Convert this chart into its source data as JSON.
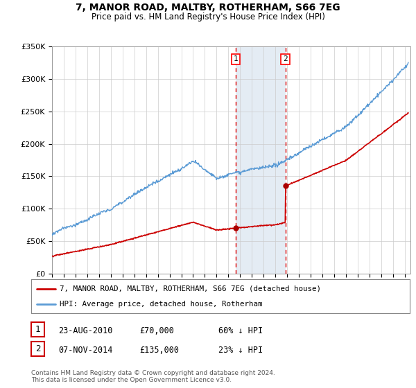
{
  "title": "7, MANOR ROAD, MALTBY, ROTHERHAM, S66 7EG",
  "subtitle": "Price paid vs. HM Land Registry's House Price Index (HPI)",
  "ylabel_ticks": [
    "£0",
    "£50K",
    "£100K",
    "£150K",
    "£200K",
    "£250K",
    "£300K",
    "£350K"
  ],
  "ylim": [
    0,
    350000
  ],
  "xlim_start": 1995.0,
  "xlim_end": 2025.5,
  "sale1_date": 2010.64,
  "sale1_price": 70000,
  "sale1_label": "1",
  "sale2_date": 2014.85,
  "sale2_price": 135000,
  "sale2_label": "2",
  "hpi_color": "#5b9bd5",
  "price_color": "#cc0000",
  "sale_marker_color": "#aa0000",
  "vspan_color": "#dce6f1",
  "vline_color": "#dd0000",
  "legend_label_price": "7, MANOR ROAD, MALTBY, ROTHERHAM, S66 7EG (detached house)",
  "legend_label_hpi": "HPI: Average price, detached house, Rotherham",
  "table_rows": [
    {
      "num": "1",
      "date": "23-AUG-2010",
      "price": "£70,000",
      "change": "60% ↓ HPI"
    },
    {
      "num": "2",
      "date": "07-NOV-2014",
      "price": "£135,000",
      "change": "23% ↓ HPI"
    }
  ],
  "footnote": "Contains HM Land Registry data © Crown copyright and database right 2024.\nThis data is licensed under the Open Government Licence v3.0.",
  "background_color": "#ffffff",
  "plot_bg_color": "#ffffff",
  "grid_color": "#cccccc"
}
